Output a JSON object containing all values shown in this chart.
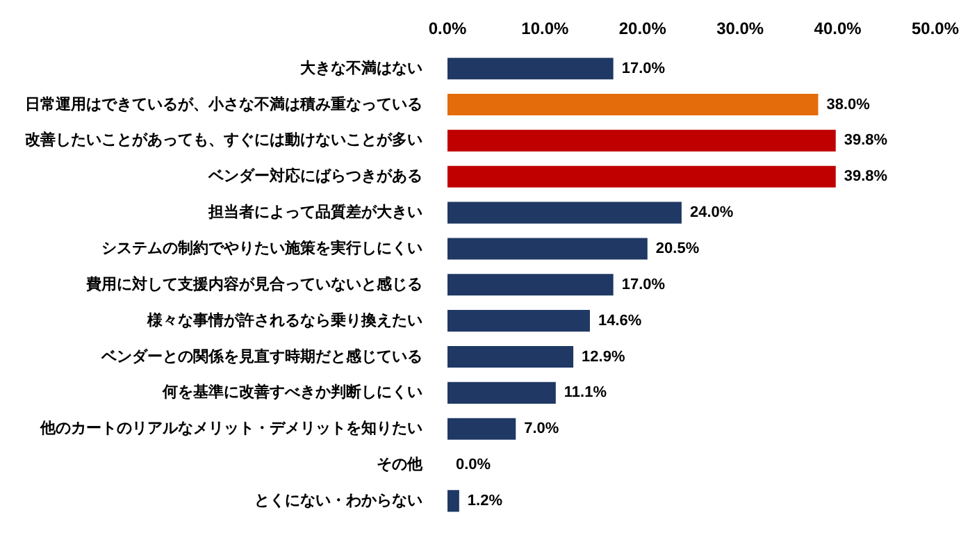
{
  "chart_data": {
    "type": "bar",
    "orientation": "horizontal",
    "categories": [
      "大きな不満はない",
      "日常運用はできているが、小さな不満は積み重なっている",
      "改善したいことがあっても、すぐには動けないことが多い",
      "ベンダー対応にばらつきがある",
      "担当者によって品質差が大きい",
      "システムの制約でやりたい施策を実行しにくい",
      "費用に対して支援内容が見合っていないと感じる",
      "様々な事情が許されるなら乗り換えたい",
      "ベンダーとの関係を見直す時期だと感じている",
      "何を基準に改善すべきか判断しにくい",
      "他のカートのリアルなメリット・デメリットを知りたい",
      "その他",
      "とくにない・わからない"
    ],
    "values": [
      17.0,
      38.0,
      39.8,
      39.8,
      24.0,
      20.5,
      17.0,
      14.6,
      12.9,
      11.1,
      7.0,
      0.0,
      1.2
    ],
    "colors": [
      "#1f3864",
      "#e46c0a",
      "#c00000",
      "#c00000",
      "#1f3864",
      "#1f3864",
      "#1f3864",
      "#1f3864",
      "#1f3864",
      "#1f3864",
      "#1f3864",
      "#1f3864",
      "#1f3864"
    ],
    "value_labels": [
      "17.0%",
      "38.0%",
      "39.8%",
      "39.8%",
      "24.0%",
      "20.5%",
      "17.0%",
      "14.6%",
      "12.9%",
      "11.1%",
      "7.0%",
      "0.0%",
      "1.2%"
    ],
    "xlim": [
      0,
      50
    ],
    "xticks": [
      {
        "value": 0,
        "label": "0.0%"
      },
      {
        "value": 10,
        "label": "10.0%"
      },
      {
        "value": 20,
        "label": "20.0%"
      },
      {
        "value": 30,
        "label": "30.0%"
      },
      {
        "value": 40,
        "label": "40.0%"
      },
      {
        "value": 50,
        "label": "50.0%"
      }
    ],
    "grid": false,
    "legend": false
  }
}
